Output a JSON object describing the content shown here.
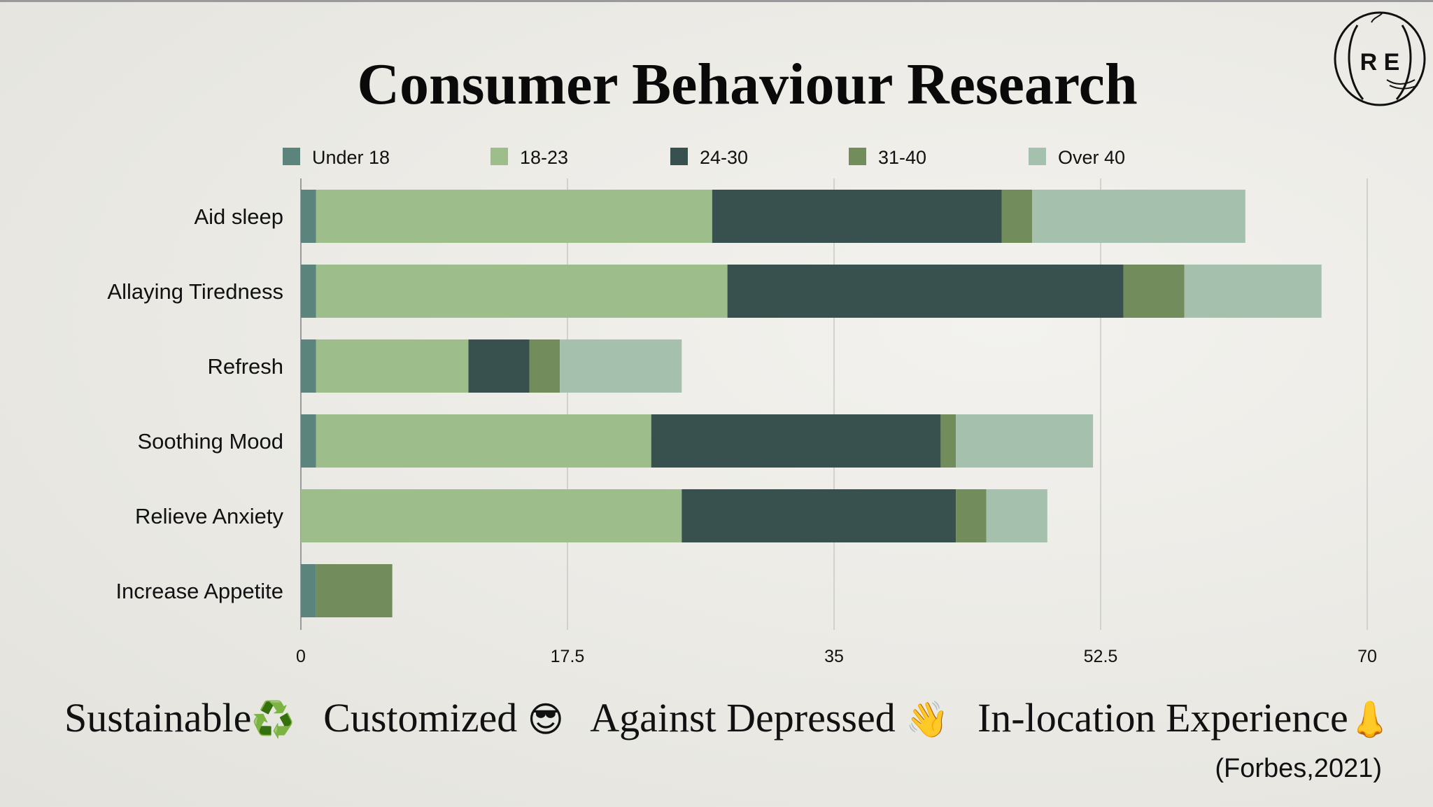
{
  "title": "Consumer Behaviour Research",
  "logo_text": "R E",
  "chart_data": {
    "type": "bar",
    "orientation": "horizontal",
    "stacked": true,
    "categories": [
      "Aid sleep",
      "Allaying Tiredness",
      "Refresh",
      "Soothing Mood",
      "Relieve Anxiety",
      "Increase Appetite"
    ],
    "series": [
      {
        "name": "Under 18",
        "color": "#5b857c",
        "values": [
          1,
          1,
          1,
          1,
          0,
          1
        ]
      },
      {
        "name": "18-23",
        "color": "#9dbd8b",
        "values": [
          26,
          27,
          10,
          22,
          25,
          0
        ]
      },
      {
        "name": "24-30",
        "color": "#38514f",
        "values": [
          19,
          26,
          4,
          19,
          18,
          0
        ]
      },
      {
        "name": "31-40",
        "color": "#728d5b",
        "values": [
          2,
          4,
          2,
          1,
          2,
          5
        ]
      },
      {
        "name": "Over 40",
        "color": "#a6c0ae",
        "values": [
          14,
          9,
          8,
          9,
          4,
          0
        ]
      }
    ],
    "xlim": [
      0,
      70
    ],
    "xticks": [
      "0",
      "17.5",
      "35",
      "52.5",
      "70"
    ],
    "grid": true,
    "legend": "top"
  },
  "tagline": [
    {
      "text": "Sustainable",
      "emoji": "♻️"
    },
    {
      "text": "Customized",
      "emoji": "😎"
    },
    {
      "text": "Against Depressed",
      "emoji": "👋"
    },
    {
      "text": "In-location Experience",
      "emoji": "👃"
    }
  ],
  "citation": "(Forbes,2021)"
}
